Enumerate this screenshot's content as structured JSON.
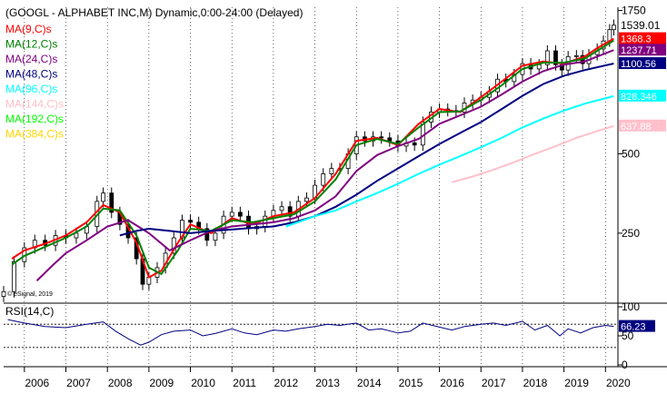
{
  "chart_data": {
    "type": "line",
    "title": "(GOOGL - ALPHABET INC,M) Dynamic,0:00-24:00 (Delayed)",
    "copyright": "© eSignal, 2019",
    "price_scale": "log",
    "price_ticks": [
      {
        "value": 250,
        "label": "250"
      },
      {
        "value": 500,
        "label": "500"
      },
      {
        "value": 1750,
        "label": "1750"
      }
    ],
    "x_ticks": [
      "2006",
      "2007",
      "2008",
      "2009",
      "2010",
      "2011",
      "2012",
      "2013",
      "2014",
      "2015",
      "2016",
      "2017",
      "2018",
      "2019",
      "2020"
    ],
    "x_range": [
      2005.5,
      2020.3
    ],
    "price_range": [
      140,
      1800
    ],
    "last_price": {
      "label": "1539.01",
      "value": 1539.01
    },
    "series": [
      {
        "name": "MA(9,C)s",
        "color": "#ff0000",
        "tag": "1368.3",
        "tag_value": 1368.3,
        "points": [
          [
            2005.7,
            200
          ],
          [
            2006.0,
            215
          ],
          [
            2006.5,
            228
          ],
          [
            2007.0,
            245
          ],
          [
            2007.5,
            275
          ],
          [
            2007.9,
            320
          ],
          [
            2008.3,
            300
          ],
          [
            2008.7,
            230
          ],
          [
            2009.0,
            170
          ],
          [
            2009.3,
            180
          ],
          [
            2009.7,
            230
          ],
          [
            2010.0,
            270
          ],
          [
            2010.5,
            250
          ],
          [
            2011.0,
            285
          ],
          [
            2011.5,
            270
          ],
          [
            2012.0,
            290
          ],
          [
            2012.5,
            300
          ],
          [
            2013.0,
            340
          ],
          [
            2013.5,
            420
          ],
          [
            2014.0,
            560
          ],
          [
            2014.5,
            575
          ],
          [
            2015.0,
            540
          ],
          [
            2015.5,
            650
          ],
          [
            2016.0,
            740
          ],
          [
            2016.5,
            720
          ],
          [
            2017.0,
            820
          ],
          [
            2017.5,
            940
          ],
          [
            2018.0,
            1080
          ],
          [
            2018.5,
            1120
          ],
          [
            2019.0,
            1100
          ],
          [
            2019.5,
            1170
          ],
          [
            2019.8,
            1260
          ],
          [
            2020.2,
            1368.3
          ]
        ]
      },
      {
        "name": "MA(12,C)s",
        "color": "#008000",
        "tag": "",
        "tag_value": 1345,
        "points": [
          [
            2005.7,
            190
          ],
          [
            2006.0,
            205
          ],
          [
            2006.5,
            222
          ],
          [
            2007.0,
            240
          ],
          [
            2007.5,
            265
          ],
          [
            2007.9,
            310
          ],
          [
            2008.3,
            305
          ],
          [
            2008.7,
            245
          ],
          [
            2009.0,
            185
          ],
          [
            2009.3,
            175
          ],
          [
            2009.7,
            215
          ],
          [
            2010.0,
            260
          ],
          [
            2010.5,
            255
          ],
          [
            2011.0,
            280
          ],
          [
            2011.5,
            275
          ],
          [
            2012.0,
            285
          ],
          [
            2012.5,
            295
          ],
          [
            2013.0,
            330
          ],
          [
            2013.5,
            400
          ],
          [
            2014.0,
            540
          ],
          [
            2014.5,
            570
          ],
          [
            2015.0,
            545
          ],
          [
            2015.5,
            630
          ],
          [
            2016.0,
            720
          ],
          [
            2016.5,
            725
          ],
          [
            2017.0,
            800
          ],
          [
            2017.5,
            910
          ],
          [
            2018.0,
            1050
          ],
          [
            2018.5,
            1110
          ],
          [
            2019.0,
            1110
          ],
          [
            2019.5,
            1150
          ],
          [
            2019.8,
            1230
          ],
          [
            2020.2,
            1345
          ]
        ]
      },
      {
        "name": "MA(24,C)s",
        "color": "#800080",
        "tag": "1237.71",
        "tag_value": 1237.71,
        "points": [
          [
            2006.3,
            165
          ],
          [
            2006.7,
            190
          ],
          [
            2007.0,
            210
          ],
          [
            2007.5,
            235
          ],
          [
            2008.0,
            265
          ],
          [
            2008.5,
            280
          ],
          [
            2009.0,
            250
          ],
          [
            2009.5,
            215
          ],
          [
            2010.0,
            235
          ],
          [
            2010.5,
            255
          ],
          [
            2011.0,
            265
          ],
          [
            2011.5,
            270
          ],
          [
            2012.0,
            275
          ],
          [
            2012.5,
            285
          ],
          [
            2013.0,
            305
          ],
          [
            2013.5,
            345
          ],
          [
            2014.0,
            430
          ],
          [
            2014.5,
            495
          ],
          [
            2015.0,
            535
          ],
          [
            2015.5,
            570
          ],
          [
            2016.0,
            650
          ],
          [
            2016.5,
            700
          ],
          [
            2017.0,
            755
          ],
          [
            2017.5,
            840
          ],
          [
            2018.0,
            940
          ],
          [
            2018.5,
            1030
          ],
          [
            2019.0,
            1090
          ],
          [
            2019.5,
            1120
          ],
          [
            2019.8,
            1170
          ],
          [
            2020.2,
            1237.71
          ]
        ]
      },
      {
        "name": "MA(48,C)s",
        "color": "#000080",
        "tag": "1100.56",
        "tag_value": 1100.56,
        "points": [
          [
            2008.3,
            245
          ],
          [
            2008.7,
            255
          ],
          [
            2009.0,
            260
          ],
          [
            2009.5,
            255
          ],
          [
            2010.0,
            250
          ],
          [
            2010.5,
            255
          ],
          [
            2011.0,
            258
          ],
          [
            2011.5,
            262
          ],
          [
            2012.0,
            265
          ],
          [
            2012.5,
            275
          ],
          [
            2013.0,
            290
          ],
          [
            2013.5,
            315
          ],
          [
            2014.0,
            350
          ],
          [
            2014.5,
            395
          ],
          [
            2015.0,
            440
          ],
          [
            2015.5,
            490
          ],
          [
            2016.0,
            545
          ],
          [
            2016.5,
            600
          ],
          [
            2017.0,
            660
          ],
          [
            2017.5,
            740
          ],
          [
            2018.0,
            830
          ],
          [
            2018.5,
            920
          ],
          [
            2019.0,
            990
          ],
          [
            2019.5,
            1040
          ],
          [
            2020.2,
            1100.56
          ]
        ]
      },
      {
        "name": "MA(96,C)s",
        "color": "#00ffff",
        "tag": "828.346",
        "tag_value": 828.346,
        "points": [
          [
            2012.3,
            265
          ],
          [
            2013.0,
            290
          ],
          [
            2013.5,
            305
          ],
          [
            2014.0,
            330
          ],
          [
            2014.5,
            355
          ],
          [
            2015.0,
            385
          ],
          [
            2015.5,
            420
          ],
          [
            2016.0,
            455
          ],
          [
            2016.5,
            490
          ],
          [
            2017.0,
            530
          ],
          [
            2017.5,
            575
          ],
          [
            2018.0,
            630
          ],
          [
            2018.5,
            680
          ],
          [
            2019.0,
            730
          ],
          [
            2019.5,
            775
          ],
          [
            2020.2,
            828.346
          ]
        ]
      },
      {
        "name": "MA(144,C)s",
        "color": "#ffc0cb",
        "tag": "637.88",
        "tag_value": 637.88,
        "points": [
          [
            2016.3,
            390
          ],
          [
            2016.8,
            410
          ],
          [
            2017.3,
            435
          ],
          [
            2017.8,
            465
          ],
          [
            2018.3,
            500
          ],
          [
            2018.8,
            535
          ],
          [
            2019.3,
            575
          ],
          [
            2019.8,
            610
          ],
          [
            2020.2,
            637.88
          ]
        ]
      },
      {
        "name": "MA(192,C)s",
        "color": "#00ff00",
        "tag": "",
        "tag_value": null,
        "points": []
      },
      {
        "name": "MA(384,C)s",
        "color": "#ffd700",
        "tag": "",
        "tag_value": null,
        "points": []
      }
    ],
    "price_candles": [
      [
        2005.5,
        150
      ],
      [
        2005.75,
        195
      ],
      [
        2006.0,
        220
      ],
      [
        2006.25,
        235
      ],
      [
        2006.5,
        225
      ],
      [
        2006.75,
        245
      ],
      [
        2007.0,
        240
      ],
      [
        2007.25,
        250
      ],
      [
        2007.5,
        265
      ],
      [
        2007.75,
        330
      ],
      [
        2007.9,
        355
      ],
      [
        2008.1,
        300
      ],
      [
        2008.3,
        270
      ],
      [
        2008.5,
        240
      ],
      [
        2008.7,
        200
      ],
      [
        2008.85,
        160
      ],
      [
        2009.0,
        170
      ],
      [
        2009.2,
        185
      ],
      [
        2009.4,
        210
      ],
      [
        2009.6,
        240
      ],
      [
        2009.8,
        280
      ],
      [
        2010.0,
        275
      ],
      [
        2010.2,
        260
      ],
      [
        2010.4,
        235
      ],
      [
        2010.6,
        250
      ],
      [
        2010.8,
        290
      ],
      [
        2011.0,
        300
      ],
      [
        2011.2,
        290
      ],
      [
        2011.4,
        260
      ],
      [
        2011.6,
        265
      ],
      [
        2011.8,
        290
      ],
      [
        2012.0,
        305
      ],
      [
        2012.2,
        315
      ],
      [
        2012.4,
        290
      ],
      [
        2012.6,
        330
      ],
      [
        2012.8,
        340
      ],
      [
        2013.0,
        380
      ],
      [
        2013.2,
        420
      ],
      [
        2013.4,
        440
      ],
      [
        2013.6,
        440
      ],
      [
        2013.8,
        500
      ],
      [
        2014.0,
        580
      ],
      [
        2014.2,
        560
      ],
      [
        2014.4,
        580
      ],
      [
        2014.6,
        575
      ],
      [
        2014.8,
        560
      ],
      [
        2015.0,
        535
      ],
      [
        2015.2,
        550
      ],
      [
        2015.4,
        540
      ],
      [
        2015.6,
        660
      ],
      [
        2015.8,
        720
      ],
      [
        2016.0,
        740
      ],
      [
        2016.2,
        730
      ],
      [
        2016.4,
        720
      ],
      [
        2016.6,
        780
      ],
      [
        2016.8,
        800
      ],
      [
        2017.0,
        820
      ],
      [
        2017.2,
        860
      ],
      [
        2017.4,
        960
      ],
      [
        2017.6,
        940
      ],
      [
        2017.8,
        1000
      ],
      [
        2018.0,
        1100
      ],
      [
        2018.2,
        1050
      ],
      [
        2018.4,
        1090
      ],
      [
        2018.6,
        1230
      ],
      [
        2018.8,
        1090
      ],
      [
        2018.95,
        1040
      ],
      [
        2019.1,
        1170
      ],
      [
        2019.3,
        1180
      ],
      [
        2019.45,
        1100
      ],
      [
        2019.6,
        1190
      ],
      [
        2019.8,
        1250
      ],
      [
        2019.95,
        1340
      ],
      [
        2020.1,
        1480
      ],
      [
        2020.2,
        1539.01
      ]
    ],
    "rsi": {
      "name": "RSI(14,C)",
      "tag": "66.23",
      "tag_value": 66.23,
      "ticks": [
        {
          "value": 0,
          "label": "0"
        },
        {
          "value": 50,
          "label": "50"
        },
        {
          "value": 100,
          "label": "100"
        }
      ],
      "levels": [
        30,
        70
      ],
      "range": [
        0,
        100
      ],
      "values": [
        [
          2005.6,
          78
        ],
        [
          2006.0,
          72
        ],
        [
          2006.5,
          66
        ],
        [
          2007.0,
          64
        ],
        [
          2007.5,
          70
        ],
        [
          2007.9,
          74
        ],
        [
          2008.2,
          58
        ],
        [
          2008.5,
          45
        ],
        [
          2008.8,
          34
        ],
        [
          2009.0,
          39
        ],
        [
          2009.3,
          52
        ],
        [
          2009.6,
          58
        ],
        [
          2010.0,
          60
        ],
        [
          2010.3,
          50
        ],
        [
          2010.6,
          54
        ],
        [
          2011.0,
          62
        ],
        [
          2011.3,
          55
        ],
        [
          2011.6,
          52
        ],
        [
          2012.0,
          60
        ],
        [
          2012.3,
          58
        ],
        [
          2012.6,
          62
        ],
        [
          2013.0,
          66
        ],
        [
          2013.3,
          70
        ],
        [
          2013.6,
          68
        ],
        [
          2014.0,
          72
        ],
        [
          2014.3,
          60
        ],
        [
          2014.6,
          62
        ],
        [
          2015.0,
          55
        ],
        [
          2015.3,
          58
        ],
        [
          2015.6,
          72
        ],
        [
          2016.0,
          65
        ],
        [
          2016.3,
          60
        ],
        [
          2016.6,
          66
        ],
        [
          2017.0,
          70
        ],
        [
          2017.3,
          72
        ],
        [
          2017.6,
          68
        ],
        [
          2018.0,
          75
        ],
        [
          2018.3,
          60
        ],
        [
          2018.6,
          68
        ],
        [
          2018.9,
          50
        ],
        [
          2019.1,
          62
        ],
        [
          2019.4,
          55
        ],
        [
          2019.7,
          64
        ],
        [
          2020.0,
          68
        ],
        [
          2020.2,
          66.23
        ]
      ]
    }
  }
}
